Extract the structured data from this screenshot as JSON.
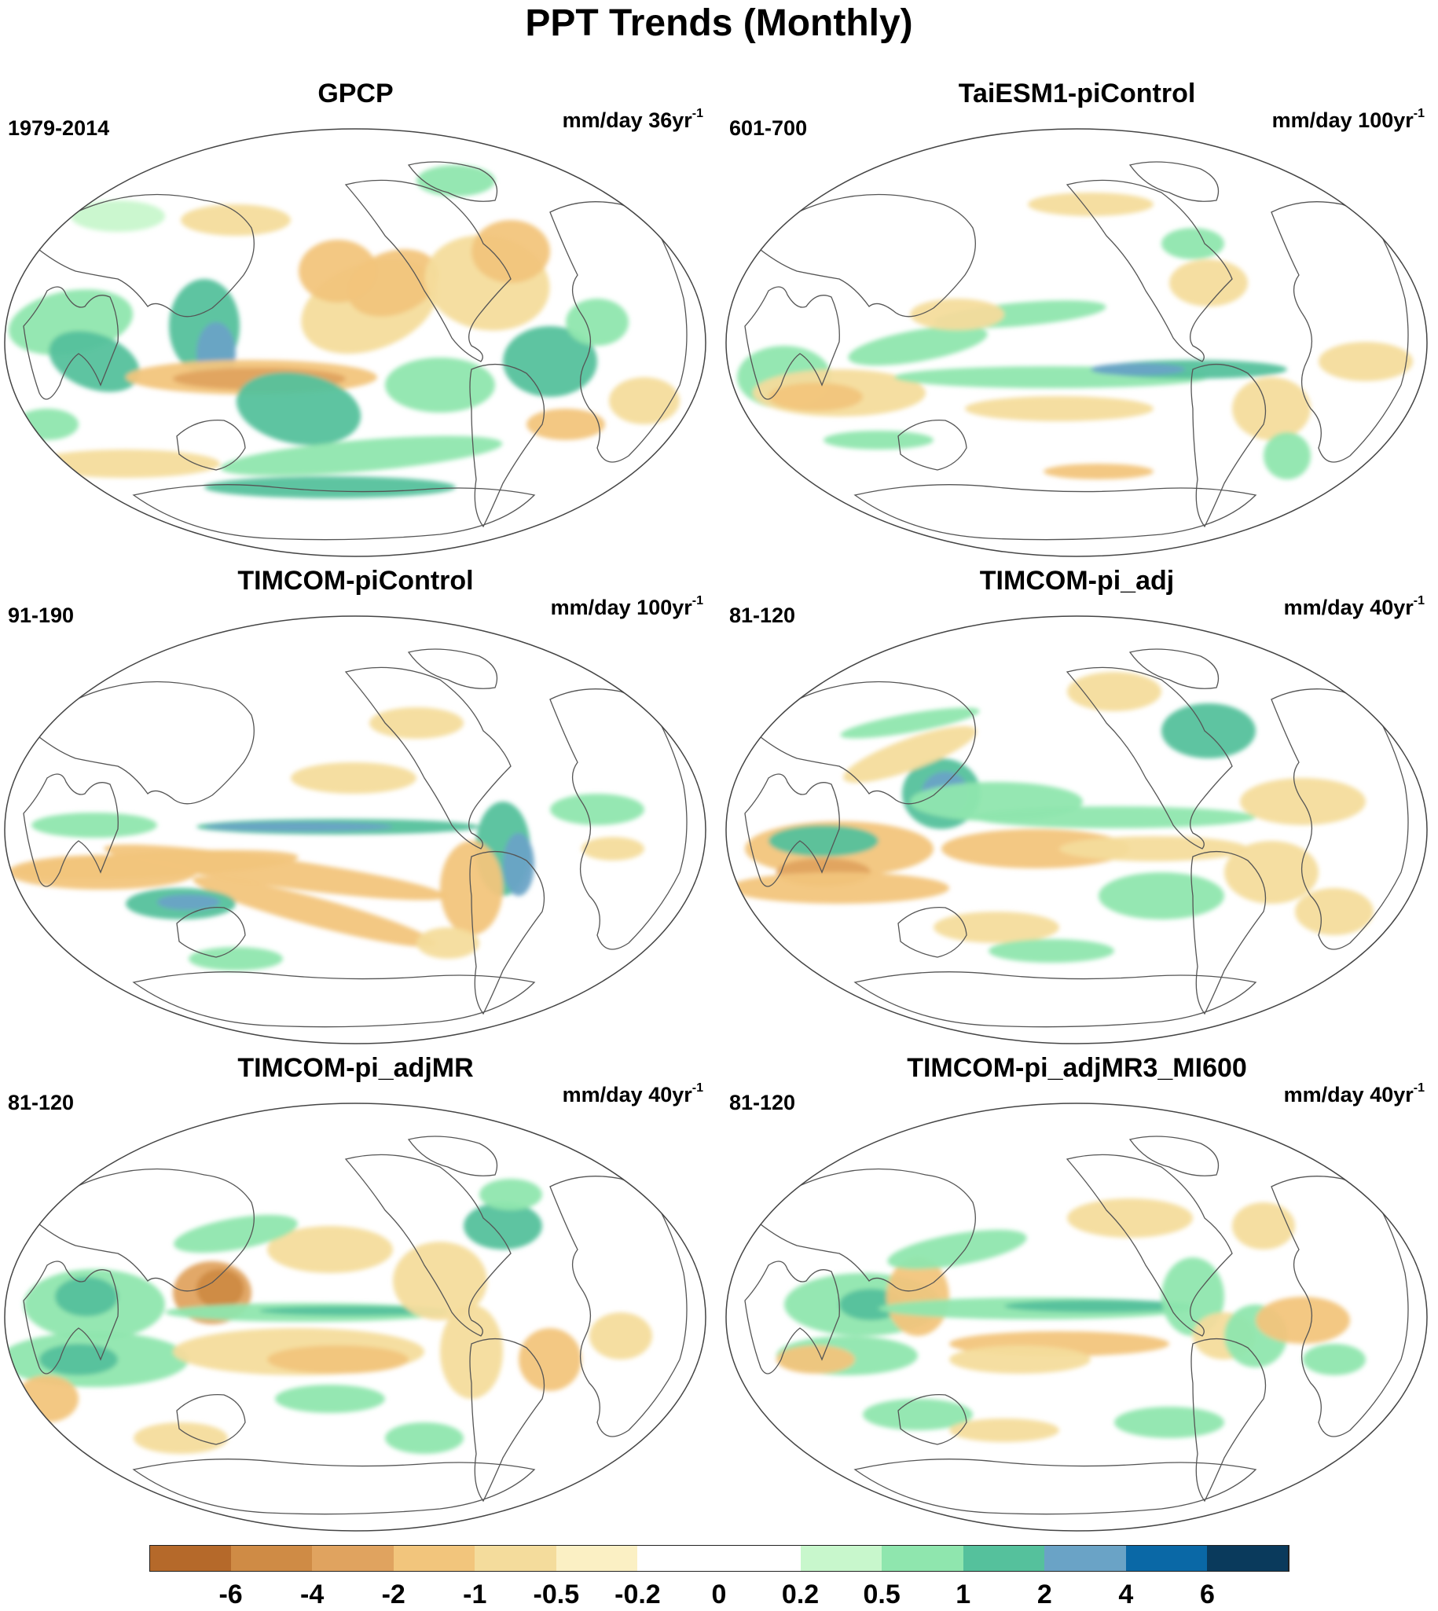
{
  "title": "PPT Trends (Monthly)",
  "panels": [
    {
      "title": "GPCP",
      "period": "1979-2014",
      "units": "mm/day 36yr",
      "units_exp": "-1"
    },
    {
      "title": "TaiESM1-piControl",
      "period": "601-700",
      "units": "mm/day 100yr",
      "units_exp": "-1"
    },
    {
      "title": "TIMCOM-piControl",
      "period": "91-190",
      "units": "mm/day 100yr",
      "units_exp": "-1"
    },
    {
      "title": "TIMCOM-pi_adj",
      "period": "81-120",
      "units": "mm/day 40yr",
      "units_exp": "-1"
    },
    {
      "title": "TIMCOM-pi_adjMR",
      "period": "81-120",
      "units": "mm/day 40yr",
      "units_exp": "-1"
    },
    {
      "title": "TIMCOM-pi_adjMR3_MI600",
      "period": "81-120",
      "units": "mm/day 40yr",
      "units_exp": "-1"
    }
  ],
  "colorbar": {
    "labels": [
      "-6",
      "-4",
      "-2",
      "-1",
      "-0.5",
      "-0.2",
      "0",
      "0.2",
      "0.5",
      "1",
      "2",
      "4",
      "6"
    ],
    "colors": [
      "#b5692a",
      "#cf8b45",
      "#e0a35f",
      "#f2c57c",
      "#f4dc9c",
      "#fbf0c4",
      "#ffffff",
      "#ffffff",
      "#c8f7cc",
      "#8fe6ae",
      "#55c19c",
      "#6aa3c6",
      "#0a68a6",
      "#0a3a5c"
    ]
  }
}
